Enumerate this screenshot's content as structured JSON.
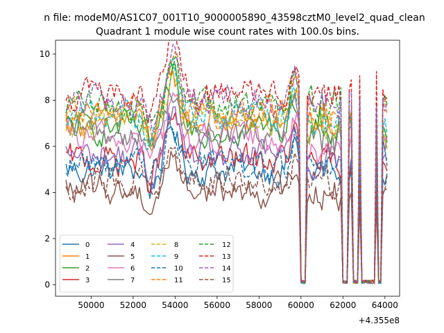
{
  "figure": {
    "suptitle": "n file: modeM0/AS1C07_001T10_9000005890_43598cztM0_level2_quad_clean",
    "offset_label": "+4.355e8"
  },
  "chart_data": {
    "type": "line",
    "title": "Quadrant 1 module wise count rates with 100.0s bins.",
    "xlabel": "",
    "ylabel": "",
    "xlim": [
      48300,
      64700
    ],
    "ylim": [
      -0.5,
      10.6
    ],
    "x_offset": 435500000,
    "xticks": [
      50000,
      52000,
      54000,
      56000,
      58000,
      60000,
      62000,
      64000
    ],
    "yticks": [
      0,
      2,
      4,
      6,
      8,
      10
    ],
    "grid": false,
    "legend_location": "lower left",
    "legend_columns": 4,
    "x_range": [
      48800,
      64100
    ],
    "bin_seconds": 100,
    "gaps": [
      [
        60000,
        60200
      ],
      [
        62000,
        62200
      ],
      [
        62500,
        62700
      ],
      [
        62900,
        63200
      ],
      [
        63300,
        63500
      ],
      [
        63700,
        63800
      ]
    ],
    "series": [
      {
        "name": "0",
        "color": "#1f77b4",
        "linestyle": "solid",
        "level": 5.0
      },
      {
        "name": "1",
        "color": "#ff7f0e",
        "linestyle": "solid",
        "level": 7.1
      },
      {
        "name": "2",
        "color": "#2ca02c",
        "linestyle": "solid",
        "level": 6.8
      },
      {
        "name": "3",
        "color": "#d62728",
        "linestyle": "solid",
        "level": 5.4
      },
      {
        "name": "4",
        "color": "#9467bd",
        "linestyle": "solid",
        "level": 5.6
      },
      {
        "name": "5",
        "color": "#8c564b",
        "linestyle": "solid",
        "level": 4.1
      },
      {
        "name": "6",
        "color": "#e377c2",
        "linestyle": "solid",
        "level": 6.3
      },
      {
        "name": "7",
        "color": "#7f7f7f",
        "linestyle": "solid",
        "level": 6.6
      },
      {
        "name": "8",
        "color": "#bcbd22",
        "linestyle": "dashed",
        "level": 7.2
      },
      {
        "name": "9",
        "color": "#17becf",
        "linestyle": "dashed",
        "level": 7.4
      },
      {
        "name": "10",
        "color": "#1f77b4",
        "linestyle": "dashed",
        "level": 5.3
      },
      {
        "name": "11",
        "color": "#ff7f0e",
        "linestyle": "dashed",
        "level": 7.5
      },
      {
        "name": "12",
        "color": "#2ca02c",
        "linestyle": "dashed",
        "level": 7.8
      },
      {
        "name": "13",
        "color": "#d62728",
        "linestyle": "dashed",
        "level": 8.3
      },
      {
        "name": "14",
        "color": "#9467bd",
        "linestyle": "dashed",
        "level": 7.9
      },
      {
        "name": "15",
        "color": "#8c564b",
        "linestyle": "dashed",
        "level": 4.5
      }
    ]
  }
}
